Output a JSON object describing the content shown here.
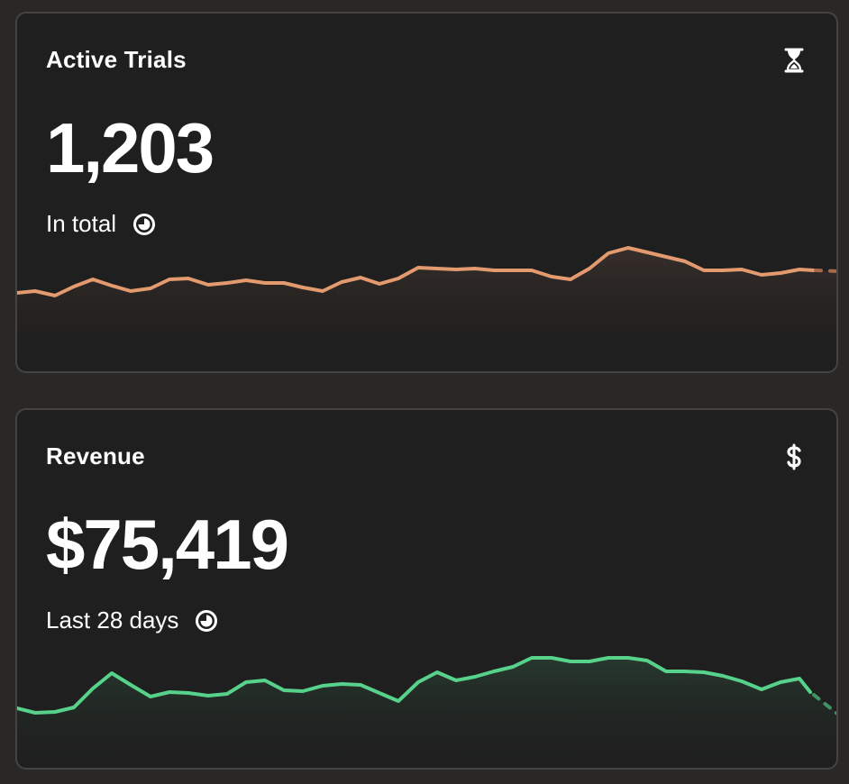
{
  "cards": [
    {
      "title": "Active Trials",
      "icon": "hourglass-icon",
      "value": "1,203",
      "caption": "In total",
      "caption_icon": "clock-icon",
      "accent": "#e39a6e",
      "fill_top": "#3a302b"
    },
    {
      "title": "Revenue",
      "icon": "dollar-icon",
      "value": "$75,419",
      "caption": "Last 28 days",
      "caption_icon": "clock-icon",
      "accent": "#57d28a",
      "fill_top": "#273a2f"
    }
  ]
}
